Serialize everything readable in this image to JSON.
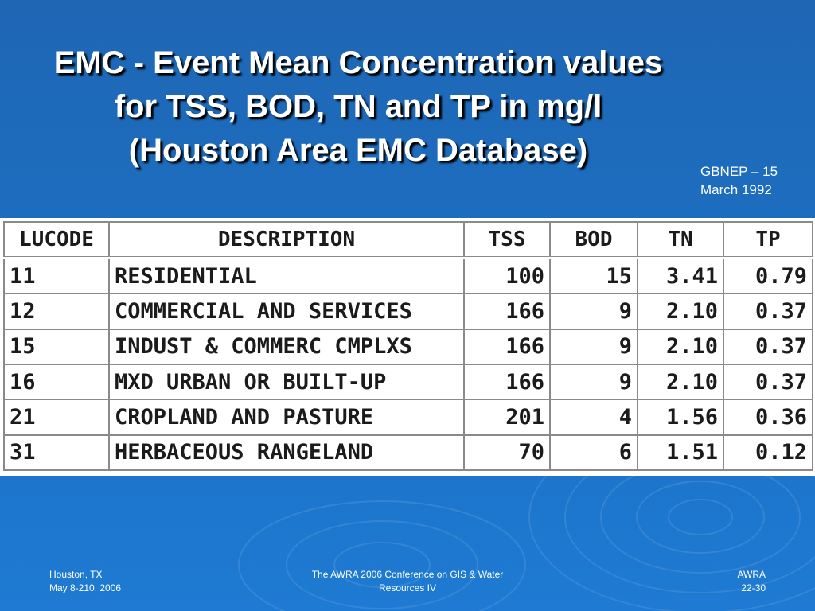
{
  "title": {
    "line1": "EMC - Event Mean Concentration values",
    "line2": "for TSS, BOD, TN and TP in mg/l",
    "line3": "(Houston Area EMC Database)"
  },
  "source": {
    "line1": "GBNEP – 15",
    "line2": "March 1992"
  },
  "table": {
    "headers": [
      "LUCODE",
      "DESCRIPTION",
      "TSS",
      "BOD",
      "TN",
      "TP"
    ],
    "rows": [
      [
        "11",
        "RESIDENTIAL",
        "100",
        "15",
        "3.41",
        "0.79"
      ],
      [
        "12",
        "COMMERCIAL AND SERVICES",
        "166",
        "9",
        "2.10",
        "0.37"
      ],
      [
        "15",
        "INDUST & COMMERC CMPLXS",
        "166",
        "9",
        "2.10",
        "0.37"
      ],
      [
        "16",
        "MXD URBAN OR BUILT-UP",
        "166",
        "9",
        "2.10",
        "0.37"
      ],
      [
        "21",
        "CROPLAND AND PASTURE",
        "201",
        "4",
        "1.56",
        "0.36"
      ],
      [
        "31",
        "HERBACEOUS RANGELAND",
        "70",
        "6",
        "1.51",
        "0.12"
      ]
    ]
  },
  "footer": {
    "left_line1": "Houston, TX",
    "left_line2": "May 8-210, 2006",
    "center_line1": "The AWRA 2006 Conference on GIS & Water",
    "center_line2": "Resources IV",
    "right_line1": "AWRA",
    "right_line2": "22-30"
  },
  "colors": {
    "background": "#1c6fc2",
    "title_text": "#ffffff",
    "table_background": "#ffffff",
    "table_text": "#1b1b1b"
  }
}
